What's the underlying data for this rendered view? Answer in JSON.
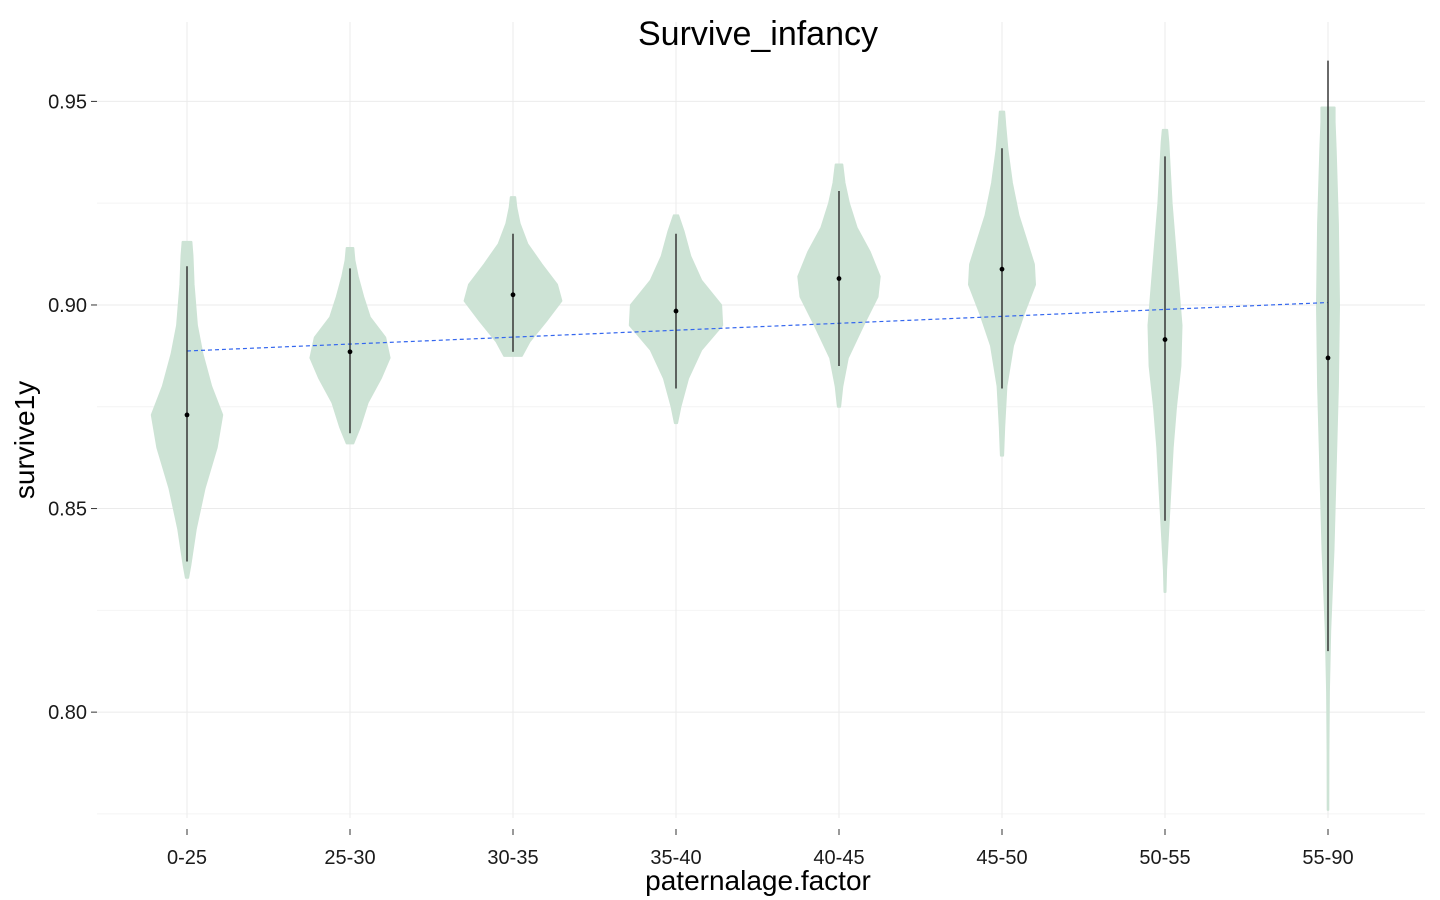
{
  "chart_data": {
    "type": "violin",
    "title": "Survive_infancy",
    "xlabel": "paternalage.factor",
    "ylabel": "survive1y",
    "ylim": [
      0.774,
      0.9695
    ],
    "yticks": [
      0.8,
      0.85,
      0.9,
      0.95
    ],
    "ytick_labels": [
      "0.80",
      "0.85",
      "0.90",
      "0.95"
    ],
    "grid": true,
    "fill_color": "#cde3d5",
    "whisker_color": "#2b2b2b",
    "trend_color": "#3366ee",
    "categories": [
      "0-25",
      "25-30",
      "30-35",
      "35-40",
      "40-45",
      "45-50",
      "50-55",
      "55-90"
    ],
    "violins": [
      {
        "category": "0-25",
        "ymin": 0.833,
        "ymax": 0.9155,
        "whisker_low": 0.837,
        "whisker_high": 0.9095,
        "mean": 0.873,
        "profile": [
          [
            0.833,
            0.01
          ],
          [
            0.836,
            0.03
          ],
          [
            0.845,
            0.08
          ],
          [
            0.855,
            0.16
          ],
          [
            0.865,
            0.27
          ],
          [
            0.873,
            0.32
          ],
          [
            0.88,
            0.22
          ],
          [
            0.888,
            0.14
          ],
          [
            0.895,
            0.09
          ],
          [
            0.905,
            0.06
          ],
          [
            0.912,
            0.05
          ],
          [
            0.9155,
            0.04
          ]
        ]
      },
      {
        "category": "25-30",
        "ymin": 0.866,
        "ymax": 0.914,
        "whisker_low": 0.8685,
        "whisker_high": 0.909,
        "mean": 0.8885,
        "profile": [
          [
            0.866,
            0.03
          ],
          [
            0.87,
            0.09
          ],
          [
            0.876,
            0.16
          ],
          [
            0.882,
            0.28
          ],
          [
            0.887,
            0.36
          ],
          [
            0.892,
            0.32
          ],
          [
            0.897,
            0.18
          ],
          [
            0.902,
            0.12
          ],
          [
            0.907,
            0.07
          ],
          [
            0.911,
            0.04
          ],
          [
            0.914,
            0.03
          ]
        ]
      },
      {
        "category": "30-35",
        "ymin": 0.8875,
        "ymax": 0.9265,
        "whisker_low": 0.8885,
        "whisker_high": 0.9175,
        "mean": 0.9025,
        "profile": [
          [
            0.8875,
            0.08
          ],
          [
            0.891,
            0.15
          ],
          [
            0.896,
            0.3
          ],
          [
            0.901,
            0.44
          ],
          [
            0.905,
            0.4
          ],
          [
            0.91,
            0.26
          ],
          [
            0.915,
            0.13
          ],
          [
            0.92,
            0.06
          ],
          [
            0.924,
            0.03
          ],
          [
            0.9265,
            0.02
          ]
        ]
      },
      {
        "category": "35-40",
        "ymin": 0.871,
        "ymax": 0.922,
        "whisker_low": 0.8795,
        "whisker_high": 0.9175,
        "mean": 0.8985,
        "profile": [
          [
            0.871,
            0.01
          ],
          [
            0.875,
            0.04
          ],
          [
            0.882,
            0.11
          ],
          [
            0.889,
            0.23
          ],
          [
            0.895,
            0.42
          ],
          [
            0.9,
            0.41
          ],
          [
            0.906,
            0.23
          ],
          [
            0.912,
            0.13
          ],
          [
            0.918,
            0.07
          ],
          [
            0.922,
            0.02
          ]
        ]
      },
      {
        "category": "40-45",
        "ymin": 0.875,
        "ymax": 0.9345,
        "whisker_low": 0.885,
        "whisker_high": 0.928,
        "mean": 0.9065,
        "profile": [
          [
            0.875,
            0.01
          ],
          [
            0.88,
            0.03
          ],
          [
            0.887,
            0.08
          ],
          [
            0.895,
            0.22
          ],
          [
            0.902,
            0.35
          ],
          [
            0.907,
            0.37
          ],
          [
            0.913,
            0.28
          ],
          [
            0.919,
            0.16
          ],
          [
            0.925,
            0.09
          ],
          [
            0.93,
            0.05
          ],
          [
            0.9345,
            0.03
          ]
        ]
      },
      {
        "category": "45-50",
        "ymin": 0.863,
        "ymax": 0.9475,
        "whisker_low": 0.8795,
        "whisker_high": 0.9385,
        "mean": 0.9088,
        "profile": [
          [
            0.863,
            0.01
          ],
          [
            0.87,
            0.02
          ],
          [
            0.88,
            0.04
          ],
          [
            0.89,
            0.1
          ],
          [
            0.898,
            0.2
          ],
          [
            0.905,
            0.3
          ],
          [
            0.91,
            0.29
          ],
          [
            0.916,
            0.22
          ],
          [
            0.922,
            0.15
          ],
          [
            0.93,
            0.09
          ],
          [
            0.938,
            0.05
          ],
          [
            0.944,
            0.03
          ],
          [
            0.9475,
            0.02
          ]
        ]
      },
      {
        "category": "50-55",
        "ymin": 0.8295,
        "ymax": 0.943,
        "whisker_low": 0.847,
        "whisker_high": 0.9365,
        "mean": 0.8915,
        "profile": [
          [
            0.8295,
            0.005
          ],
          [
            0.835,
            0.01
          ],
          [
            0.845,
            0.03
          ],
          [
            0.855,
            0.05
          ],
          [
            0.865,
            0.07
          ],
          [
            0.875,
            0.1
          ],
          [
            0.885,
            0.14
          ],
          [
            0.895,
            0.15
          ],
          [
            0.905,
            0.12
          ],
          [
            0.915,
            0.09
          ],
          [
            0.925,
            0.06
          ],
          [
            0.935,
            0.04
          ],
          [
            0.94,
            0.03
          ],
          [
            0.943,
            0.02
          ]
        ]
      },
      {
        "category": "55-90",
        "ymin": 0.776,
        "ymax": 0.9485,
        "whisker_low": 0.815,
        "whisker_high": 0.96,
        "mean": 0.887,
        "profile": [
          [
            0.776,
            0.003
          ],
          [
            0.79,
            0.004
          ],
          [
            0.805,
            0.008
          ],
          [
            0.82,
            0.02
          ],
          [
            0.84,
            0.05
          ],
          [
            0.86,
            0.07
          ],
          [
            0.88,
            0.09
          ],
          [
            0.9,
            0.1
          ],
          [
            0.92,
            0.09
          ],
          [
            0.938,
            0.07
          ],
          [
            0.945,
            0.06
          ],
          [
            0.9485,
            0.06
          ]
        ]
      }
    ],
    "trend_line": {
      "style": "dashed",
      "x_from": "0-25",
      "y_from": 0.8887,
      "x_to": "55-90",
      "y_to": 0.9006
    }
  }
}
